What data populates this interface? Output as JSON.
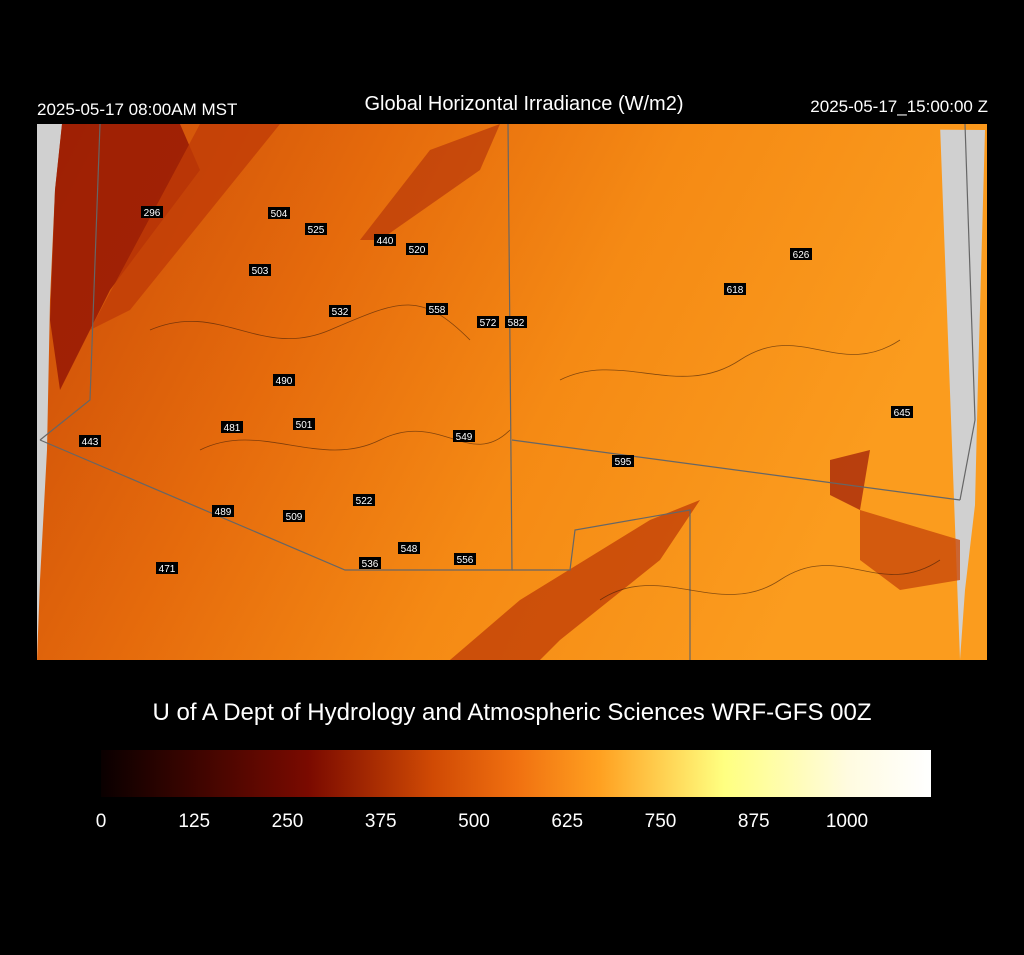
{
  "header": {
    "left": "2025-05-17 08:00AM MST",
    "title": "Global Horizontal Irradiance (W/m2)",
    "right": "2025-05-17_15:00:00 Z"
  },
  "stations": [
    296,
    504,
    525,
    440,
    520,
    503,
    532,
    558,
    572,
    582,
    626,
    618,
    490,
    645,
    443,
    481,
    501,
    549,
    595,
    522,
    489,
    509,
    548,
    536,
    556,
    471
  ],
  "footer": "U of A Dept of Hydrology and Atmospheric Sciences WRF-GFS 00Z",
  "colorbar": {
    "ticks": [
      0,
      125,
      250,
      375,
      500,
      625,
      750,
      875,
      1000
    ]
  }
}
